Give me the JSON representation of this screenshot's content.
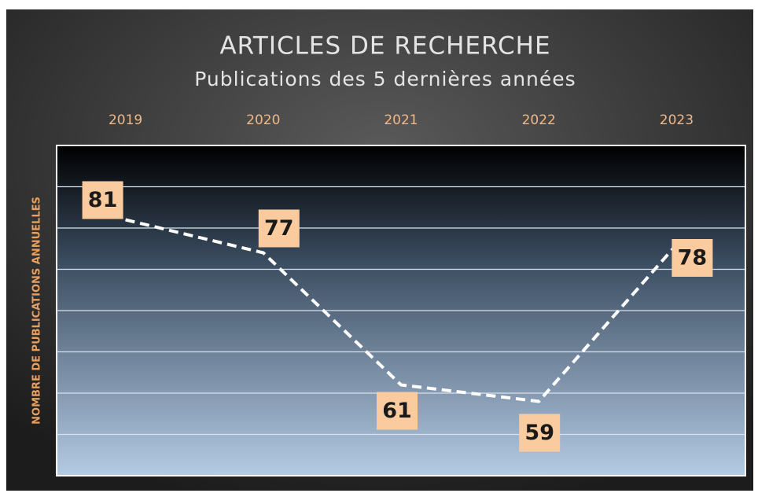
{
  "chart_data": {
    "type": "line",
    "title": "ARTICLES DE RECHERCHE",
    "subtitle": "Publications des 5 dernières années",
    "y_axis_label": "NOMBRE DE PUBLICATIONS ANNUELLES",
    "categories": [
      "2019",
      "2020",
      "2021",
      "2022",
      "2023"
    ],
    "values": [
      81,
      77,
      61,
      59,
      78
    ],
    "color": "#ffffff",
    "ylim": [
      50,
      90
    ],
    "yticks": [
      55,
      60,
      65,
      70,
      75,
      80,
      85
    ],
    "grid": true
  }
}
